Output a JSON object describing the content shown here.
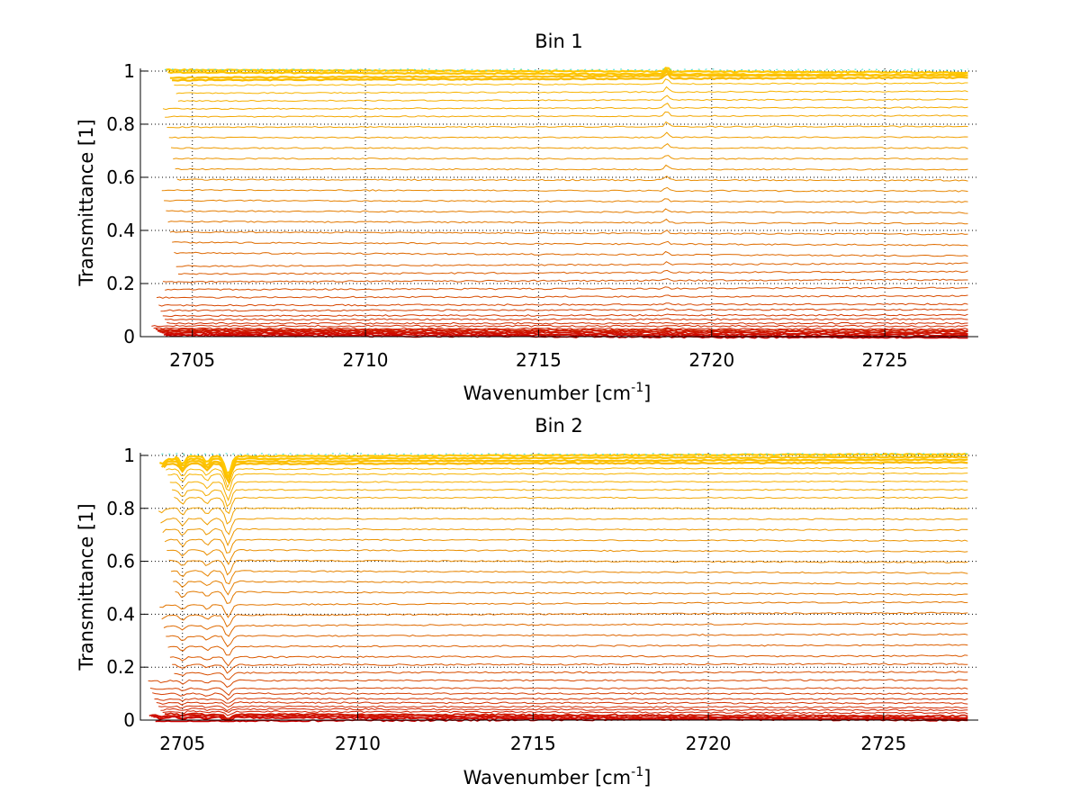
{
  "chart_data": [
    {
      "type": "line",
      "title": "Bin 1",
      "xlabel": "Wavenumber [cm",
      "xlabel_sup": "-1",
      "xlabel_end": "]",
      "ylabel": "Transmittance [1]",
      "xlim": [
        2703.5,
        2727.7
      ],
      "ylim": [
        0,
        1.01
      ],
      "x_range": [
        2703.8,
        2727.4
      ],
      "xticks": [
        2705,
        2710,
        2715,
        2720,
        2725
      ],
      "yticks": [
        0,
        0.2,
        0.4,
        0.6,
        0.8,
        1
      ],
      "ytick_labels": [
        "0",
        "0.2",
        "0.4",
        "0.6",
        "0.8",
        "1"
      ],
      "grid": true,
      "series_levels": [
        0.0,
        0.005,
        0.01,
        0.015,
        0.02,
        0.025,
        0.03,
        0.04,
        0.05,
        0.065,
        0.08,
        0.1,
        0.12,
        0.15,
        0.18,
        0.21,
        0.24,
        0.27,
        0.31,
        0.35,
        0.39,
        0.43,
        0.47,
        0.51,
        0.55,
        0.59,
        0.63,
        0.67,
        0.71,
        0.75,
        0.79,
        0.83,
        0.86,
        0.89,
        0.92,
        0.95,
        0.97,
        0.98,
        0.99,
        1.0
      ],
      "features": [
        {
          "x": 2718.7,
          "depth": 0.02,
          "width": 0.08,
          "sign": 1
        }
      ],
      "colors": [
        "#cc0000",
        "#d43a00",
        "#e07000",
        "#f0a000",
        "#ffc800",
        "#40e0d0"
      ]
    },
    {
      "type": "line",
      "title": "Bin 2",
      "xlabel": "Wavenumber [cm",
      "xlabel_sup": "-1",
      "xlabel_end": "]",
      "ylabel": "Transmittance [1]",
      "xlim": [
        2703.8,
        2727.7
      ],
      "ylim": [
        0,
        1.01
      ],
      "x_range": [
        2704.0,
        2727.4
      ],
      "xticks": [
        2705,
        2710,
        2715,
        2720,
        2725
      ],
      "yticks": [
        0,
        0.2,
        0.4,
        0.6,
        0.8,
        1
      ],
      "ytick_labels": [
        "0",
        "0.2",
        "0.4",
        "0.6",
        "0.8",
        "1"
      ],
      "grid": true,
      "series_levels": [
        0.0,
        0.005,
        0.01,
        0.015,
        0.02,
        0.03,
        0.04,
        0.05,
        0.065,
        0.08,
        0.1,
        0.12,
        0.15,
        0.18,
        0.21,
        0.24,
        0.28,
        0.32,
        0.36,
        0.4,
        0.44,
        0.48,
        0.52,
        0.56,
        0.6,
        0.64,
        0.68,
        0.72,
        0.76,
        0.8,
        0.84,
        0.87,
        0.9,
        0.93,
        0.95,
        0.97,
        0.98,
        0.99,
        1.0
      ],
      "features": [
        {
          "x": 2706.3,
          "depth": 0.07,
          "width": 0.12,
          "sign": -1
        },
        {
          "x": 2705.0,
          "depth": 0.03,
          "width": 0.1,
          "sign": -1
        },
        {
          "x": 2705.7,
          "depth": 0.025,
          "width": 0.1,
          "sign": -1
        },
        {
          "x": 2704.4,
          "depth": 0.02,
          "width": 0.1,
          "sign": -1
        }
      ],
      "colors": [
        "#cc0000",
        "#d43a00",
        "#e07000",
        "#f0a000",
        "#ffc800",
        "#40e0d0"
      ]
    }
  ]
}
